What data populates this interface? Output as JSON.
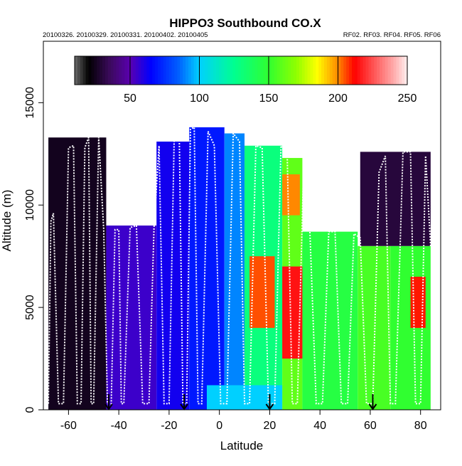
{
  "chart_data": {
    "type": "heatmap",
    "title": "HIPPO3 Southbound CO.X",
    "subtitle_left": "20100326. 20100329. 20100331. 20100402. 20100405",
    "subtitle_right": "RF02. RF03. RF04. RF05. RF06",
    "xlabel": "Latitude",
    "ylabel": "Altitude (m)",
    "xlim": [
      -70,
      88
    ],
    "ylim": [
      0,
      18000
    ],
    "xticks": [
      -60,
      -40,
      -20,
      0,
      20,
      40,
      60,
      80
    ],
    "yticks": [
      0,
      5000,
      10000,
      15000
    ],
    "colorbar": {
      "range": [
        10,
        250
      ],
      "ticks": [
        50,
        100,
        150,
        200,
        250
      ],
      "stops": [
        {
          "v": 10,
          "c": "#6a6a6a"
        },
        {
          "v": 20,
          "c": "#000000"
        },
        {
          "v": 35,
          "c": "#3a0a5a"
        },
        {
          "v": 50,
          "c": "#5a00b0"
        },
        {
          "v": 65,
          "c": "#0000ff"
        },
        {
          "v": 85,
          "c": "#0060ff"
        },
        {
          "v": 100,
          "c": "#00d0ff"
        },
        {
          "v": 125,
          "c": "#00ff90"
        },
        {
          "v": 150,
          "c": "#30ff30"
        },
        {
          "v": 170,
          "c": "#90ff00"
        },
        {
          "v": 185,
          "c": "#ffff00"
        },
        {
          "v": 200,
          "c": "#ff8800"
        },
        {
          "v": 212,
          "c": "#ff0000"
        },
        {
          "v": 225,
          "c": "#ff5050"
        },
        {
          "v": 240,
          "c": "#ffaaaa"
        },
        {
          "v": 250,
          "c": "#fff0f0"
        }
      ]
    },
    "profile_latitudes": [
      -68,
      -66,
      -62,
      -58,
      -55,
      -52,
      -50,
      -46,
      -43,
      -40,
      -38,
      -33,
      -28,
      -24,
      -20,
      -16,
      -13,
      -10,
      -7,
      -2,
      3,
      8,
      12,
      17,
      22,
      27,
      31,
      36,
      41,
      46,
      51,
      56,
      61,
      66,
      70,
      76,
      80,
      84
    ],
    "profile_tops_m": [
      9200,
      9600,
      12800,
      12900,
      12800,
      13300,
      13300,
      8800,
      8800,
      8800,
      8900,
      9000,
      8900,
      12900,
      13100,
      13800,
      13700,
      13800,
      13600,
      12900,
      13500,
      13100,
      12900,
      12800,
      12900,
      12300,
      11800,
      8700,
      8700,
      8700,
      8600,
      8400,
      11600,
      12400,
      12600,
      12600,
      12400,
      8000
    ],
    "arrows_latitude": [
      -44,
      -14,
      20,
      61
    ],
    "regions": [
      {
        "lat": [
          -68,
          -45
        ],
        "alt": [
          0,
          13300
        ],
        "value": 25
      },
      {
        "lat": [
          -45,
          -25
        ],
        "alt": [
          0,
          9000
        ],
        "value": 55
      },
      {
        "lat": [
          -25,
          -12
        ],
        "alt": [
          0,
          13100
        ],
        "value": 62
      },
      {
        "lat": [
          -12,
          2
        ],
        "alt": [
          0,
          13800
        ],
        "value": 70
      },
      {
        "lat": [
          2,
          10
        ],
        "alt": [
          0,
          13500
        ],
        "value": 90
      },
      {
        "lat": [
          10,
          25
        ],
        "alt": [
          0,
          12900
        ],
        "value": 130
      },
      {
        "lat": [
          25,
          33
        ],
        "alt": [
          0,
          12300
        ],
        "value": 160
      },
      {
        "lat": [
          33,
          55
        ],
        "alt": [
          0,
          8700
        ],
        "value": 145
      },
      {
        "lat": [
          55,
          68
        ],
        "alt": [
          0,
          8000
        ],
        "value": 155
      },
      {
        "lat": [
          68,
          84
        ],
        "alt": [
          0,
          8000
        ],
        "value": 150
      },
      {
        "lat": [
          56,
          84
        ],
        "alt": [
          8000,
          12600
        ],
        "value": 30
      },
      {
        "lat": [
          12,
          22
        ],
        "alt": [
          4000,
          7500
        ],
        "value": 205
      },
      {
        "lat": [
          25,
          32
        ],
        "alt": [
          9500,
          11500
        ],
        "value": 200
      },
      {
        "lat": [
          25,
          33
        ],
        "alt": [
          2500,
          7000
        ],
        "value": 215
      },
      {
        "lat": [
          76,
          82
        ],
        "alt": [
          4000,
          6500
        ],
        "value": 210
      },
      {
        "lat": [
          -5,
          25
        ],
        "alt": [
          0,
          1200
        ],
        "value": 100
      }
    ]
  }
}
